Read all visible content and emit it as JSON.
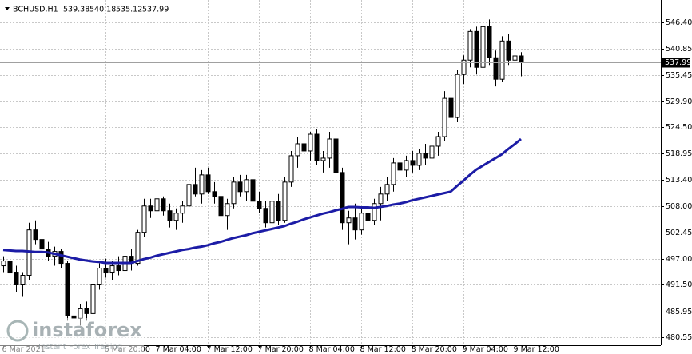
{
  "chart_data": {
    "type": "candlestick",
    "symbol": "BCHUSD,H1",
    "categories": [
      "6 Mar 2021",
      null,
      null,
      null,
      null,
      null,
      null,
      null,
      null,
      null,
      null,
      null,
      null,
      null,
      null,
      null,
      "6 Mar 20:00",
      null,
      null,
      null,
      null,
      null,
      null,
      null,
      "7 Mar 04:00",
      null,
      null,
      null,
      null,
      null,
      null,
      null,
      "7 Mar 12:00",
      null,
      null,
      null,
      null,
      null,
      null,
      null,
      "7 Mar 20:00",
      null,
      null,
      null,
      null,
      null,
      null,
      null,
      "8 Mar 04:00",
      null,
      null,
      null,
      null,
      null,
      null,
      null,
      "8 Mar 12:00",
      null,
      null,
      null,
      null,
      null,
      null,
      null,
      "8 Mar 20:00",
      null,
      null,
      null,
      null,
      null,
      null,
      null,
      "9 Mar 04:00",
      null,
      null,
      null,
      null,
      null,
      null,
      null,
      "9 Mar 12:00",
      null
    ],
    "open": [
      495.5,
      496.5,
      494.0,
      491.5,
      493.5,
      503.0,
      501.0,
      499.0,
      497.5,
      498.5,
      496.0,
      485.0,
      484.5,
      486.5,
      485.5,
      491.5,
      495.0,
      494.0,
      495.5,
      494.5,
      497.5,
      496.0,
      502.5,
      508.0,
      507.0,
      509.5,
      507.0,
      505.0,
      506.5,
      508.0,
      512.5,
      510.5,
      514.5,
      511.0,
      510.0,
      506.0,
      508.5,
      513.0,
      511.0,
      513.5,
      509.0,
      507.5,
      504.5,
      509.0,
      505.0,
      513.0,
      518.5,
      521.0,
      519.5,
      523.0,
      517.5,
      518.0,
      522.0,
      515.0,
      504.5,
      505.5,
      503.0,
      506.5,
      505.0,
      508.5,
      510.5,
      512.5,
      517.0,
      515.5,
      517.5,
      516.5,
      519.0,
      518.0,
      520.5,
      522.5,
      530.5,
      526.5,
      535.5,
      538.5,
      544.5,
      537.0,
      545.5,
      539.0,
      534.5,
      542.5,
      538.5,
      539.38
    ],
    "high": [
      497.5,
      497.0,
      495.5,
      494.0,
      504.5,
      505.0,
      503.5,
      500.5,
      499.5,
      499.0,
      496.5,
      486.5,
      487.5,
      488.0,
      492.0,
      496.0,
      497.0,
      496.5,
      497.5,
      498.5,
      499.0,
      503.0,
      509.5,
      509.5,
      511.0,
      510.0,
      508.5,
      507.5,
      509.0,
      513.5,
      516.0,
      515.5,
      516.0,
      513.0,
      512.0,
      509.5,
      514.0,
      514.5,
      514.5,
      514.0,
      511.0,
      509.0,
      510.0,
      510.5,
      514.0,
      519.5,
      522.5,
      525.5,
      523.5,
      524.0,
      519.5,
      523.5,
      522.5,
      516.0,
      507.0,
      508.5,
      507.5,
      510.0,
      509.5,
      512.0,
      514.0,
      518.0,
      525.5,
      518.5,
      519.5,
      520.0,
      521.0,
      521.5,
      523.5,
      532.0,
      533.0,
      536.5,
      539.5,
      545.0,
      545.5,
      546.0,
      547.0,
      540.5,
      543.5,
      544.0,
      545.5,
      540.18
    ],
    "low": [
      494.0,
      493.5,
      490.0,
      489.0,
      492.5,
      500.0,
      498.0,
      496.5,
      495.5,
      495.0,
      484.0,
      482.0,
      483.0,
      484.0,
      485.0,
      490.5,
      493.0,
      492.5,
      493.5,
      494.0,
      494.5,
      495.5,
      501.5,
      505.5,
      505.0,
      506.0,
      503.5,
      503.0,
      504.5,
      507.0,
      510.0,
      508.5,
      510.5,
      508.5,
      505.0,
      503.0,
      507.5,
      510.0,
      509.0,
      508.5,
      506.5,
      503.5,
      503.0,
      504.0,
      504.5,
      512.0,
      516.0,
      518.0,
      517.5,
      516.5,
      515.0,
      516.0,
      514.0,
      503.0,
      500.0,
      501.0,
      502.0,
      503.5,
      504.0,
      505.0,
      509.0,
      511.0,
      514.5,
      514.0,
      515.0,
      515.5,
      516.5,
      517.0,
      518.5,
      521.5,
      524.5,
      525.5,
      533.5,
      537.0,
      535.5,
      536.0,
      537.5,
      533.0,
      534.0,
      537.5,
      537.0,
      535.12
    ],
    "close": [
      496.5,
      494.0,
      491.5,
      493.5,
      503.0,
      501.0,
      499.0,
      497.5,
      498.5,
      496.0,
      485.0,
      484.5,
      486.5,
      485.5,
      491.5,
      495.0,
      494.0,
      495.5,
      494.5,
      497.5,
      496.0,
      502.5,
      508.0,
      507.0,
      509.5,
      507.0,
      505.0,
      506.5,
      508.0,
      512.5,
      510.5,
      514.5,
      511.0,
      510.0,
      506.0,
      508.5,
      513.0,
      511.0,
      513.5,
      509.0,
      507.5,
      504.5,
      509.0,
      505.0,
      513.0,
      518.5,
      521.0,
      519.5,
      523.0,
      517.5,
      518.0,
      522.0,
      515.0,
      504.5,
      505.5,
      503.0,
      506.5,
      505.0,
      508.5,
      510.5,
      512.5,
      517.0,
      515.5,
      517.5,
      516.5,
      519.0,
      518.0,
      520.5,
      522.5,
      530.5,
      526.5,
      535.5,
      538.5,
      544.5,
      537.0,
      545.5,
      539.0,
      534.5,
      542.5,
      538.5,
      539.38,
      537.99
    ],
    "bull_color": "#ffffff",
    "bear_color": "#000000",
    "ma": {
      "color": "#1c1ca6",
      "values": [
        498.8,
        498.7,
        498.6,
        498.6,
        498.5,
        498.4,
        498.4,
        498.3,
        498.0,
        497.7,
        497.4,
        497.1,
        496.8,
        496.6,
        496.4,
        496.3,
        496.1,
        496.1,
        496.1,
        496.1,
        496.1,
        496.5,
        496.9,
        497.2,
        497.6,
        497.9,
        498.2,
        498.5,
        498.8,
        499.0,
        499.3,
        499.5,
        499.8,
        500.2,
        500.5,
        500.9,
        501.3,
        501.6,
        501.9,
        502.3,
        502.6,
        502.9,
        503.2,
        503.5,
        503.8,
        504.3,
        504.7,
        505.2,
        505.6,
        506.0,
        506.4,
        506.7,
        507.1,
        507.4,
        507.8,
        507.8,
        507.7,
        507.7,
        507.6,
        507.8,
        508.0,
        508.3,
        508.5,
        508.8,
        509.2,
        509.5,
        509.8,
        510.1,
        510.4,
        510.7,
        511.0,
        512.2,
        513.3,
        514.5,
        515.6,
        516.4,
        517.2,
        518.0,
        518.8,
        519.9,
        520.9,
        522.0
      ]
    },
    "ylim": [
      478.88,
      549.74
    ],
    "yticks": [
      {
        "value": 480.55,
        "label": "480.55"
      },
      {
        "value": 485.95,
        "label": "485.95"
      },
      {
        "value": 491.5,
        "label": "491.50"
      },
      {
        "value": 497,
        "label": "497.00"
      },
      {
        "value": 502.45,
        "label": "502.45"
      },
      {
        "value": 508,
        "label": "508.00"
      },
      {
        "value": 513.4,
        "label": "513.40"
      },
      {
        "value": 518.95,
        "label": "518.95"
      },
      {
        "value": 524.5,
        "label": "524.50"
      },
      {
        "value": 529.9,
        "label": "529.90"
      },
      {
        "value": 535.45,
        "label": "535.45"
      },
      {
        "value": 540.85,
        "label": "540.85"
      },
      {
        "value": 546.4,
        "label": "546.40"
      }
    ],
    "grid": true
  },
  "watermark": {
    "brand": "instaforex",
    "tagline": "Instant Forex Trading"
  }
}
